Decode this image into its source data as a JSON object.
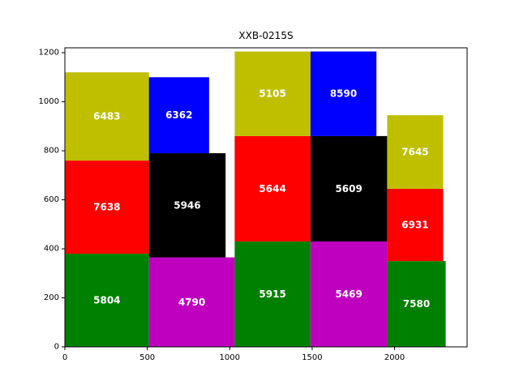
{
  "chart_data": {
    "type": "bar",
    "title": "XXB-0215S",
    "xlabel": "",
    "ylabel": "",
    "xlim": [
      0,
      2440
    ],
    "ylim": [
      0,
      1220
    ],
    "xticks": [
      0,
      500,
      1000,
      1500,
      2000
    ],
    "yticks": [
      0,
      200,
      400,
      600,
      800,
      1000,
      1200
    ],
    "grid": false,
    "colors": {
      "green": "#008000",
      "red": "#ff0000",
      "olive": "#bfbf00",
      "blue": "#0000ff",
      "black": "#000000",
      "magenta": "#bf00bf"
    },
    "blocks": [
      {
        "label": "5804",
        "x0": 0,
        "x1": 510,
        "y0": 0,
        "y1": 380,
        "color": "green"
      },
      {
        "label": "7638",
        "x0": 0,
        "x1": 510,
        "y0": 380,
        "y1": 760,
        "color": "red"
      },
      {
        "label": "6483",
        "x0": 0,
        "x1": 510,
        "y0": 760,
        "y1": 1120,
        "color": "olive"
      },
      {
        "label": "4790",
        "x0": 510,
        "x1": 1030,
        "y0": 0,
        "y1": 365,
        "color": "magenta"
      },
      {
        "label": "5946",
        "x0": 510,
        "x1": 975,
        "y0": 365,
        "y1": 790,
        "color": "black"
      },
      {
        "label": "6362",
        "x0": 510,
        "x1": 875,
        "y0": 790,
        "y1": 1100,
        "color": "blue"
      },
      {
        "label": "5915",
        "x0": 1030,
        "x1": 1490,
        "y0": 0,
        "y1": 430,
        "color": "green"
      },
      {
        "label": "5644",
        "x0": 1030,
        "x1": 1490,
        "y0": 430,
        "y1": 860,
        "color": "red"
      },
      {
        "label": "5105",
        "x0": 1030,
        "x1": 1490,
        "y0": 860,
        "y1": 1205,
        "color": "olive"
      },
      {
        "label": "5469",
        "x0": 1490,
        "x1": 1955,
        "y0": 0,
        "y1": 430,
        "color": "magenta"
      },
      {
        "label": "5609",
        "x0": 1490,
        "x1": 1955,
        "y0": 430,
        "y1": 860,
        "color": "black"
      },
      {
        "label": "8590",
        "x0": 1490,
        "x1": 1890,
        "y0": 860,
        "y1": 1205,
        "color": "blue"
      },
      {
        "label": "7580",
        "x0": 1955,
        "x1": 2310,
        "y0": 0,
        "y1": 350,
        "color": "green"
      },
      {
        "label": "6931",
        "x0": 1955,
        "x1": 2295,
        "y0": 350,
        "y1": 645,
        "color": "red"
      },
      {
        "label": "7645",
        "x0": 1955,
        "x1": 2295,
        "y0": 645,
        "y1": 945,
        "color": "olive"
      }
    ]
  }
}
